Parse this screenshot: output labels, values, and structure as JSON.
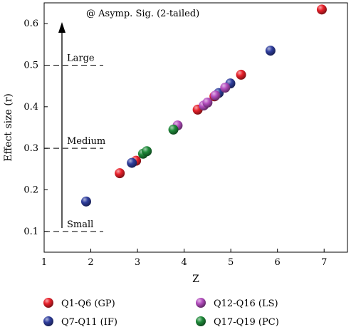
{
  "chart_data": {
    "type": "scatter",
    "title": "",
    "xlabel": "Z",
    "ylabel": "Effect size (r)",
    "xlim": [
      1,
      7.5
    ],
    "ylim": [
      0.05,
      0.65
    ],
    "xticks": [
      1,
      2,
      3,
      4,
      5,
      6,
      7
    ],
    "yticks": [
      0.1,
      0.2,
      0.3,
      0.4,
      0.5,
      0.6
    ],
    "grid": false,
    "legend_position": "bottom",
    "annotation": "@ Asymp. Sig. (2-tailed)",
    "levels": [
      {
        "label": "Large",
        "value": 0.5
      },
      {
        "label": "Medium",
        "value": 0.3
      },
      {
        "label": "Small",
        "value": 0.1
      }
    ],
    "series": [
      {
        "name": "Q1-Q6 (GP)",
        "color": "#e8202a",
        "points": [
          [
            2.62,
            0.24
          ],
          [
            2.97,
            0.27
          ],
          [
            4.29,
            0.393
          ],
          [
            4.65,
            0.425
          ],
          [
            5.22,
            0.477
          ],
          [
            6.95,
            0.634
          ]
        ]
      },
      {
        "name": "Q7-Q11 (IF)",
        "color": "#2f3e9e",
        "points": [
          [
            1.9,
            0.172
          ],
          [
            2.88,
            0.265
          ],
          [
            4.74,
            0.433
          ],
          [
            4.99,
            0.456
          ],
          [
            5.85,
            0.535
          ]
        ]
      },
      {
        "name": "Q12-Q16 (LS)",
        "color": "#b44dbf",
        "points": [
          [
            3.86,
            0.355
          ],
          [
            4.42,
            0.403
          ],
          [
            4.5,
            0.41
          ],
          [
            4.67,
            0.427
          ],
          [
            4.88,
            0.446
          ]
        ]
      },
      {
        "name": "Q17-Q19 (PC)",
        "color": "#1f8a3a",
        "points": [
          [
            3.12,
            0.287
          ],
          [
            3.2,
            0.293
          ],
          [
            3.77,
            0.345
          ]
        ]
      }
    ]
  }
}
